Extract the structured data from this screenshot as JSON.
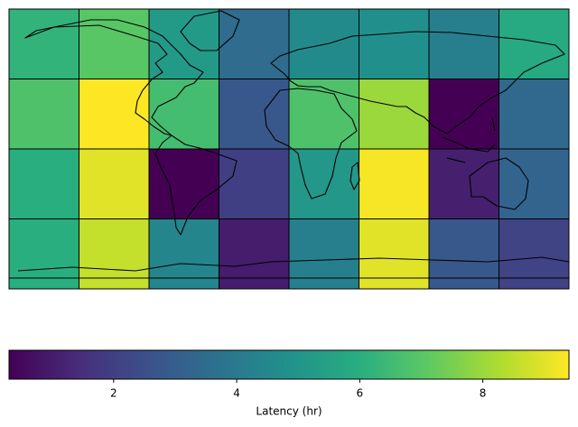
{
  "chart_data": {
    "type": "heatmap",
    "colormap": "viridis",
    "values": [
      [
        6.2,
        7.0,
        5.2,
        3.5,
        4.6,
        4.8,
        4.2,
        5.8
      ],
      [
        6.8,
        9.4,
        6.6,
        2.8,
        6.8,
        8.0,
        0.3,
        3.4
      ],
      [
        6.0,
        9.0,
        0.3,
        2.0,
        5.1,
        9.3,
        1.1,
        3.2
      ],
      [
        6.0,
        8.6,
        4.4,
        1.0,
        4.2,
        9.0,
        2.8,
        2.1
      ]
    ],
    "clim": [
      0.3,
      9.4
    ],
    "cticks": [
      2,
      4,
      6,
      8
    ],
    "colorbar_label": "Latency (hr)"
  }
}
